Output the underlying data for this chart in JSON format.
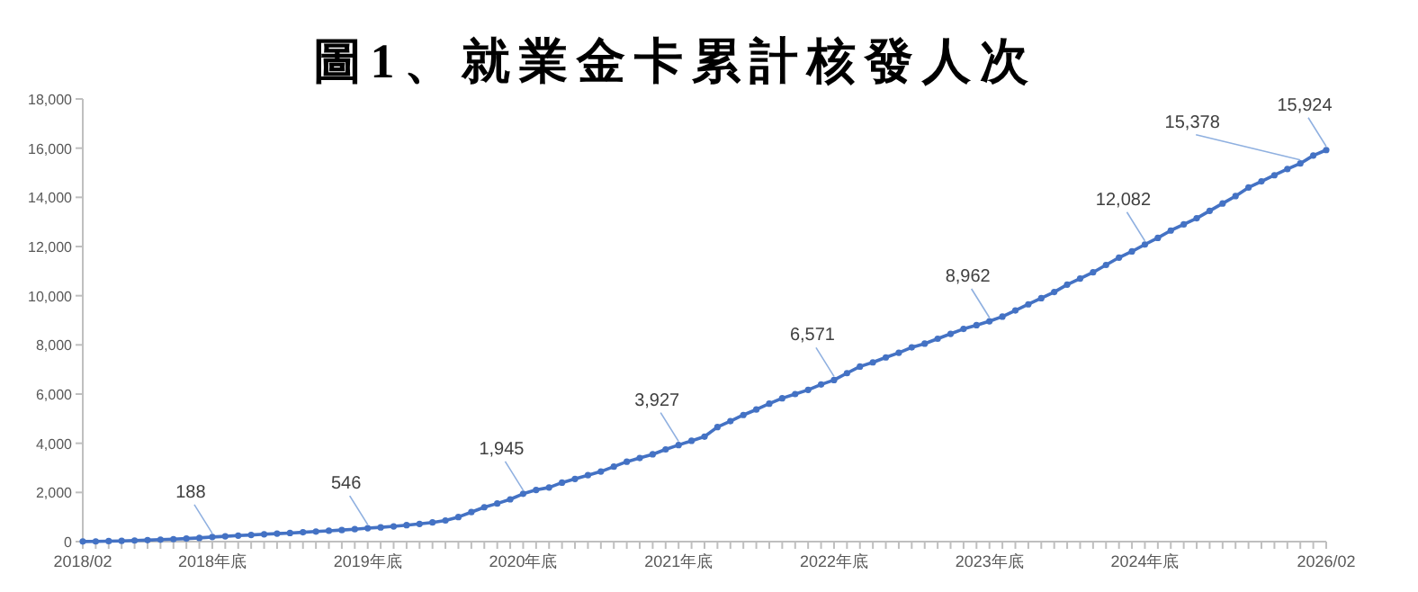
{
  "chart_data": {
    "type": "line",
    "title": "圖1、就業金卡累計核發人次",
    "categories": [
      "2018/02",
      null,
      null,
      null,
      null,
      null,
      null,
      null,
      null,
      null,
      "2018年底",
      null,
      null,
      null,
      null,
      null,
      null,
      null,
      null,
      null,
      null,
      null,
      "2019年底",
      null,
      null,
      null,
      null,
      null,
      null,
      null,
      null,
      null,
      null,
      null,
      "2020年底",
      null,
      null,
      null,
      null,
      null,
      null,
      null,
      null,
      null,
      null,
      null,
      "2021年底",
      null,
      null,
      null,
      null,
      null,
      null,
      null,
      null,
      null,
      null,
      null,
      "2022年底",
      null,
      null,
      null,
      null,
      null,
      null,
      null,
      null,
      null,
      null,
      null,
      "2023年底",
      null,
      null,
      null,
      null,
      null,
      null,
      null,
      null,
      null,
      null,
      null,
      "2024年底",
      null,
      null,
      null,
      null,
      null,
      null,
      null,
      null,
      null,
      null,
      null,
      null,
      null,
      "2026/02"
    ],
    "series": [
      {
        "color": "#4472c4",
        "values": [
          5,
          10,
          20,
          30,
          45,
          60,
          80,
          100,
          125,
          150,
          188,
          215,
          245,
          270,
          300,
          325,
          350,
          380,
          410,
          440,
          470,
          505,
          546,
          580,
          620,
          670,
          720,
          780,
          860,
          1000,
          1200,
          1400,
          1550,
          1720,
          1945,
          2100,
          2200,
          2400,
          2550,
          2700,
          2850,
          3050,
          3250,
          3400,
          3550,
          3750,
          3927,
          4100,
          4270,
          4660,
          4900,
          5150,
          5370,
          5610,
          5830,
          6000,
          6170,
          6390,
          6571,
          6850,
          7120,
          7290,
          7490,
          7680,
          7900,
          8050,
          8250,
          8450,
          8650,
          8800,
          8962,
          9150,
          9400,
          9650,
          9900,
          10150,
          10450,
          10700,
          10950,
          11250,
          11550,
          11800,
          12082,
          12350,
          12650,
          12900,
          13150,
          13450,
          13750,
          14050,
          14400,
          14650,
          14900,
          15150,
          15378,
          15700,
          15924
        ],
        "value_labels": [
          null,
          null,
          null,
          null,
          null,
          null,
          null,
          null,
          null,
          null,
          "188",
          null,
          null,
          null,
          null,
          null,
          null,
          null,
          null,
          null,
          null,
          null,
          "546",
          null,
          null,
          null,
          null,
          null,
          null,
          null,
          null,
          null,
          null,
          null,
          "1,945",
          null,
          null,
          null,
          null,
          null,
          null,
          null,
          null,
          null,
          null,
          null,
          "3,927",
          null,
          null,
          null,
          null,
          null,
          null,
          null,
          null,
          null,
          null,
          null,
          "6,571",
          null,
          null,
          null,
          null,
          null,
          null,
          null,
          null,
          null,
          null,
          null,
          "8,962",
          null,
          null,
          null,
          null,
          null,
          null,
          null,
          null,
          null,
          null,
          null,
          "12,082",
          null,
          null,
          null,
          null,
          null,
          null,
          null,
          null,
          null,
          null,
          null,
          "15,378",
          null,
          "15,924"
        ]
      }
    ],
    "ylim": [
      0,
      18000
    ],
    "yticks": [
      {
        "value": 0,
        "label": "0"
      },
      {
        "value": 2000,
        "label": "2,000"
      },
      {
        "value": 4000,
        "label": "4,000"
      },
      {
        "value": 6000,
        "label": "6,000"
      },
      {
        "value": 8000,
        "label": "8,000"
      },
      {
        "value": 10000,
        "label": "10,000"
      },
      {
        "value": 12000,
        "label": "12,000"
      },
      {
        "value": 14000,
        "label": "14,000"
      },
      {
        "value": 16000,
        "label": "16,000"
      },
      {
        "value": 18000,
        "label": "18,000"
      }
    ],
    "marker": "circle",
    "grid": false
  }
}
